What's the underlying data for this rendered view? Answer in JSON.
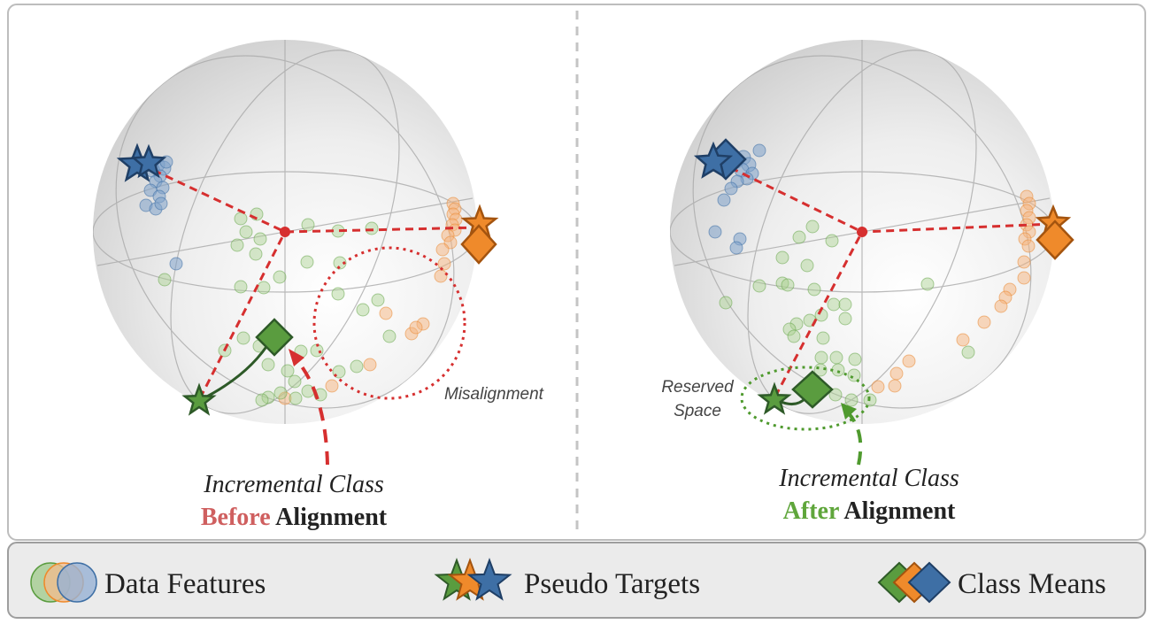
{
  "left_panel": {
    "caption_line1": "Incremental  Class",
    "caption_word_colored": "Before",
    "caption_word_bold": "Alignment",
    "annotation": "Misalignment"
  },
  "right_panel": {
    "caption_line1": "Incremental  Class",
    "caption_word_colored": "After",
    "caption_word_bold": "Alignment",
    "annotation_line1": "Reserved",
    "annotation_line2": "Space"
  },
  "legend": {
    "data_features": "Data Features",
    "pseudo_targets": "Pseudo Targets",
    "class_means": "Class Means"
  },
  "colors": {
    "blue": "#3e6fa5",
    "orange": "#ef8a2b",
    "green": "#5a9c3f",
    "red": "#d62f2f",
    "before": "#cf5f5f",
    "after": "#5fa63b"
  }
}
